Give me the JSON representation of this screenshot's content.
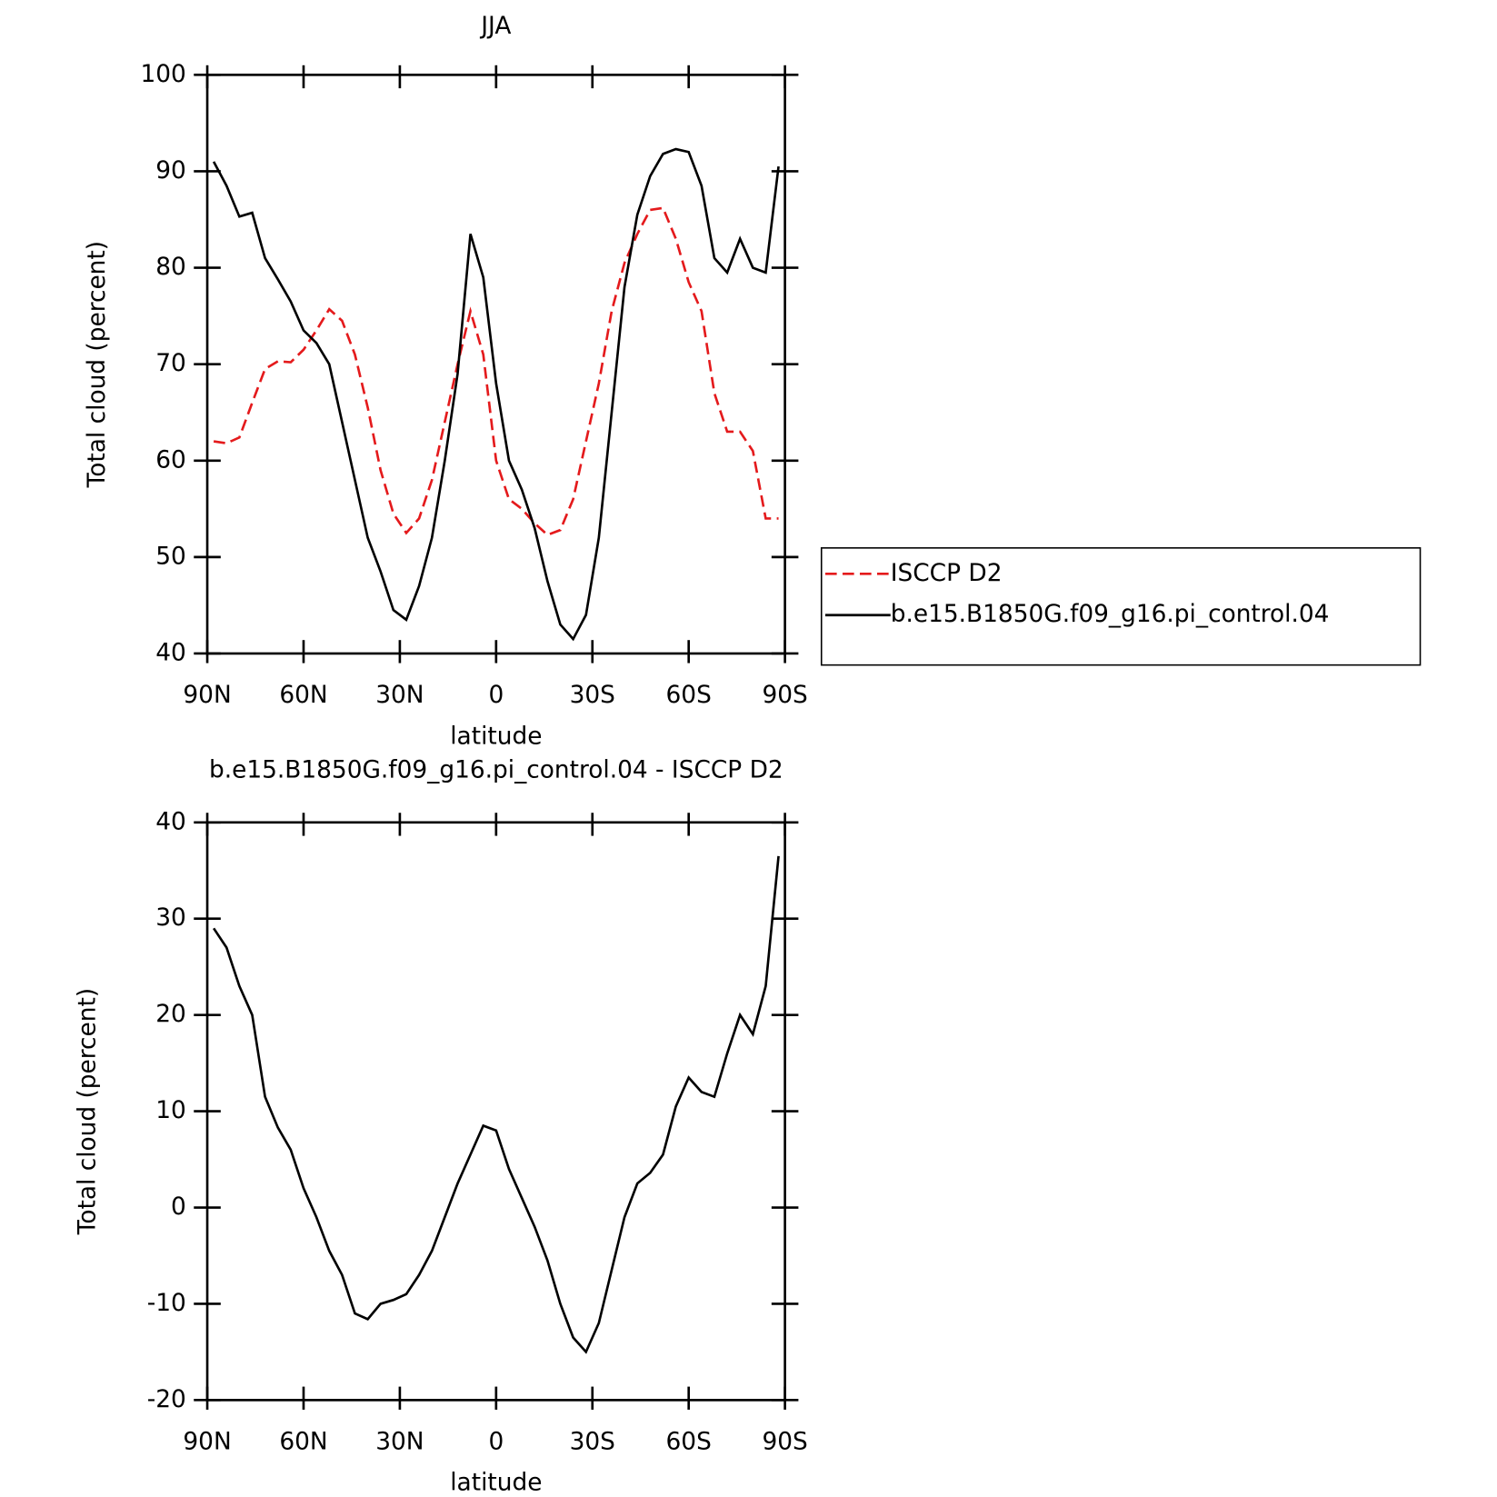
{
  "chart_data": [
    {
      "type": "line",
      "title": "JJA",
      "xlabel": "latitude",
      "ylabel": "Total cloud (percent)",
      "x": [
        88,
        84,
        80,
        76,
        72,
        68,
        64,
        60,
        56,
        52,
        48,
        44,
        40,
        36,
        32,
        28,
        24,
        20,
        16,
        12,
        8,
        4,
        0,
        -4,
        -8,
        -12,
        -16,
        -20,
        -24,
        -28,
        -32,
        -36,
        -40,
        -44,
        -48,
        -52,
        -56,
        -60,
        -64,
        -68,
        -72,
        -76,
        -80,
        -84,
        -88
      ],
      "series": [
        {
          "name": "ISCCP D2",
          "color": "#e41a1c",
          "line_style": "dashed",
          "values": [
            62,
            61.8,
            62.4,
            66,
            69.5,
            70.3,
            70.2,
            71.5,
            73.5,
            75.7,
            74.5,
            71,
            65.5,
            59,
            54.5,
            52.5,
            54,
            58,
            64,
            70,
            75.5,
            71,
            60,
            56,
            55,
            53.5,
            52.3,
            52.8,
            56,
            62,
            68,
            75.5,
            80.5,
            83.5,
            86,
            86.2,
            83,
            78.5,
            75.5,
            67,
            63,
            63,
            61,
            54,
            54
          ]
        },
        {
          "name": "b.e15.B1850G.f09_g16.pi_control.04",
          "color": "#000000",
          "line_style": "solid",
          "values": [
            91,
            88.5,
            85.3,
            85.7,
            81,
            78.8,
            76.5,
            73.5,
            72.2,
            70,
            64,
            58,
            52,
            48.5,
            44.5,
            43.5,
            47,
            52,
            60,
            69,
            83.5,
            79,
            68,
            60,
            57,
            53,
            47.5,
            43,
            41.5,
            44,
            52,
            65,
            78,
            85.5,
            89.5,
            91.8,
            92.3,
            92,
            88.5,
            81,
            79.5,
            83,
            80,
            79.5,
            90.5
          ]
        }
      ],
      "xlim": [
        90,
        -90
      ],
      "ylim": [
        40,
        100
      ],
      "xticks": [
        {
          "value": 90,
          "label": "90N"
        },
        {
          "value": 60,
          "label": "60N"
        },
        {
          "value": 30,
          "label": "30N"
        },
        0,
        {
          "value": -30,
          "label": "30S"
        },
        {
          "value": -60,
          "label": "60S"
        },
        {
          "value": -90,
          "label": "90S"
        }
      ],
      "yticks": [
        40,
        50,
        60,
        70,
        80,
        90,
        100
      ],
      "legend": "right"
    },
    {
      "type": "line",
      "title": "b.e15.B1850G.f09_g16.pi_control.04 - ISCCP D2",
      "xlabel": "latitude",
      "ylabel": "Total cloud (percent)",
      "x": [
        88,
        84,
        80,
        76,
        72,
        68,
        64,
        60,
        56,
        52,
        48,
        44,
        40,
        36,
        32,
        28,
        24,
        20,
        16,
        12,
        8,
        4,
        0,
        -4,
        -8,
        -12,
        -16,
        -20,
        -24,
        -28,
        -32,
        -36,
        -40,
        -44,
        -48,
        -52,
        -56,
        -60,
        -64,
        -68,
        -72,
        -76,
        -80,
        -84,
        -88
      ],
      "series": [
        {
          "color": "#000000",
          "line_style": "solid",
          "values": [
            29,
            27,
            23,
            20,
            11.5,
            8.3,
            6,
            2,
            -1,
            -4.5,
            -7,
            -11,
            -11.6,
            -10,
            -9.6,
            -9,
            -7,
            -4.5,
            -1,
            2.5,
            5.5,
            8.5,
            8,
            4,
            1,
            -2,
            -5.5,
            -10,
            -13.5,
            -15,
            -12,
            -6.5,
            -1,
            2.5,
            3.6,
            5.5,
            10.5,
            13.5,
            12,
            11.5,
            16,
            20,
            18,
            23,
            36.5
          ]
        }
      ],
      "xlim": [
        90,
        -90
      ],
      "ylim": [
        -20,
        40
      ],
      "xticks": [
        {
          "value": 90,
          "label": "90N"
        },
        {
          "value": 60,
          "label": "60N"
        },
        {
          "value": 30,
          "label": "30N"
        },
        0,
        {
          "value": -30,
          "label": "30S"
        },
        {
          "value": -60,
          "label": "60S"
        },
        {
          "value": -90,
          "label": "90S"
        }
      ],
      "yticks": [
        -20,
        -10,
        0,
        10,
        20,
        30,
        40
      ]
    }
  ]
}
